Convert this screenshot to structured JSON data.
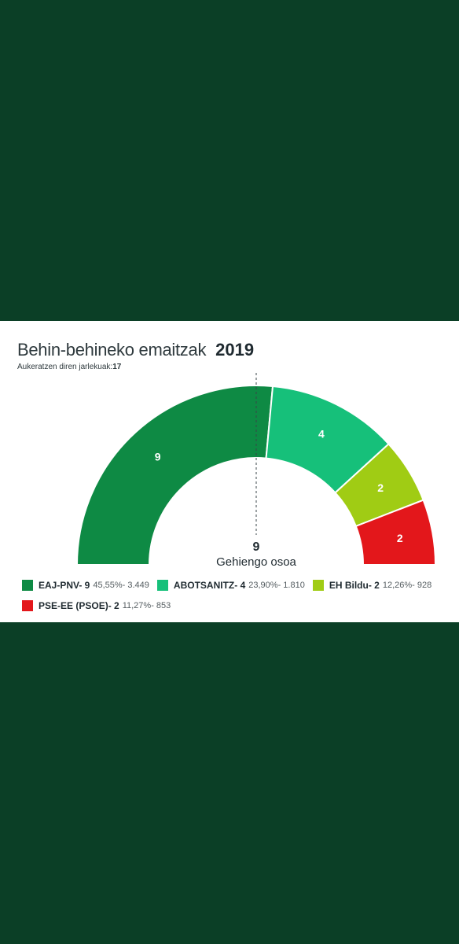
{
  "header": {
    "title": "Behin-behineko emaitzak",
    "year": "2019",
    "subtitle_label": "Aukeratzen diren jarlekuak:",
    "subtitle_value": "17"
  },
  "center": {
    "number": "9",
    "label": "Gehiengo osoa"
  },
  "chart_data": {
    "type": "pie",
    "variant": "semicircle-donut",
    "total_seats": 17,
    "majority": 9,
    "series": [
      {
        "name": "EAJ-PNV",
        "seats": 9,
        "percent": "45,55%",
        "votes": "3.449",
        "color": "#0e8a44"
      },
      {
        "name": "ABOTSANITZ",
        "seats": 4,
        "percent": "23,90%",
        "votes": "1.810",
        "color": "#16c07a"
      },
      {
        "name": "EH Bildu",
        "seats": 2,
        "percent": "12,26%",
        "votes": "928",
        "color": "#a0cc14"
      },
      {
        "name": "PSE-EE (PSOE)",
        "seats": 2,
        "percent": "11,27%",
        "votes": "853",
        "color": "#e3171b"
      }
    ]
  },
  "legend": [
    {
      "label": "EAJ-PNV- 9",
      "detail": "45,55%- 3.449"
    },
    {
      "label": "ABOTSANITZ- 4",
      "detail": "23,90%- 1.810"
    },
    {
      "label": "EH Bildu- 2",
      "detail": "12,26%- 928"
    },
    {
      "label": "PSE-EE (PSOE)- 2",
      "detail": "11,27%- 853"
    }
  ]
}
